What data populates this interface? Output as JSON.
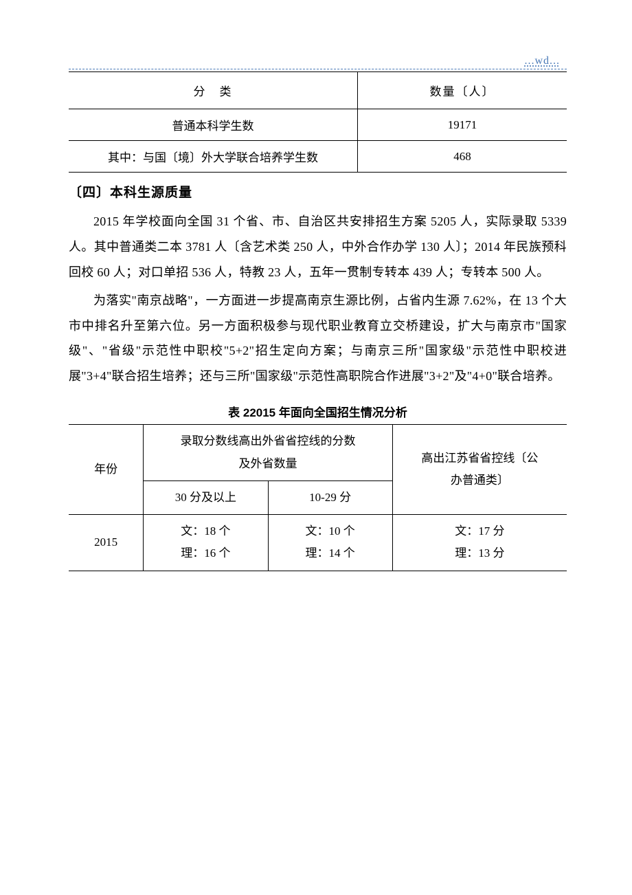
{
  "header_mark": "...wd...",
  "table1": {
    "header_category": "分　类",
    "header_count": "数量〔人〕",
    "rows": [
      {
        "label": "普通本科学生数",
        "value": "19171"
      },
      {
        "label": "其中：与国〔境〕外大学联合培养学生数",
        "value": "468"
      }
    ]
  },
  "section_heading": "〔四〕本科生源质量",
  "paragraph1": "2015 年学校面向全国 31 个省、市、自治区共安排招生方案 5205 人，实际录取 5339 人。其中普通类二本 3781 人〔含艺术类 250 人，中外合作办学 130 人〕；2014 年民族预科回校 60 人；对口单招 536 人，特教 23 人，五年一贯制专转本 439 人；专转本 500 人。",
  "paragraph2": "为落实\"南京战略\"，一方面进一步提高南京生源比例，占省内生源 7.62%，在 13 个大市中排名升至第六位。另一方面积极参与现代职业教育立交桥建设，扩大与南京市\"国家级\"、\"省级\"示范性中职校\"5+2\"招生定向方案；与南京三所\"国家级\"示范性中职校进展\"3+4\"联合招生培养；还与三所\"国家级\"示范性高职院合作进展\"3+2\"及\"4+0\"联合培养。",
  "table2_caption": "表 22015 年面向全国招生情况分析",
  "table2": {
    "head_year": "年份",
    "head_span_line1": "录取分数线高出外省省控线的分数",
    "head_span_line2": "及外省数量",
    "head_js_line1": "高出江苏省省控线〔公",
    "head_js_line2": "办普通类〕",
    "sub_30": "30 分及以上",
    "sub_10": "10-29 分",
    "row": {
      "year": "2015",
      "c30_wen": "文：18 个",
      "c30_li": "理：16 个",
      "c10_wen": "文：10 个",
      "c10_li": "理：14 个",
      "js_wen": "文：17 分",
      "js_li": "理：13 分"
    }
  }
}
